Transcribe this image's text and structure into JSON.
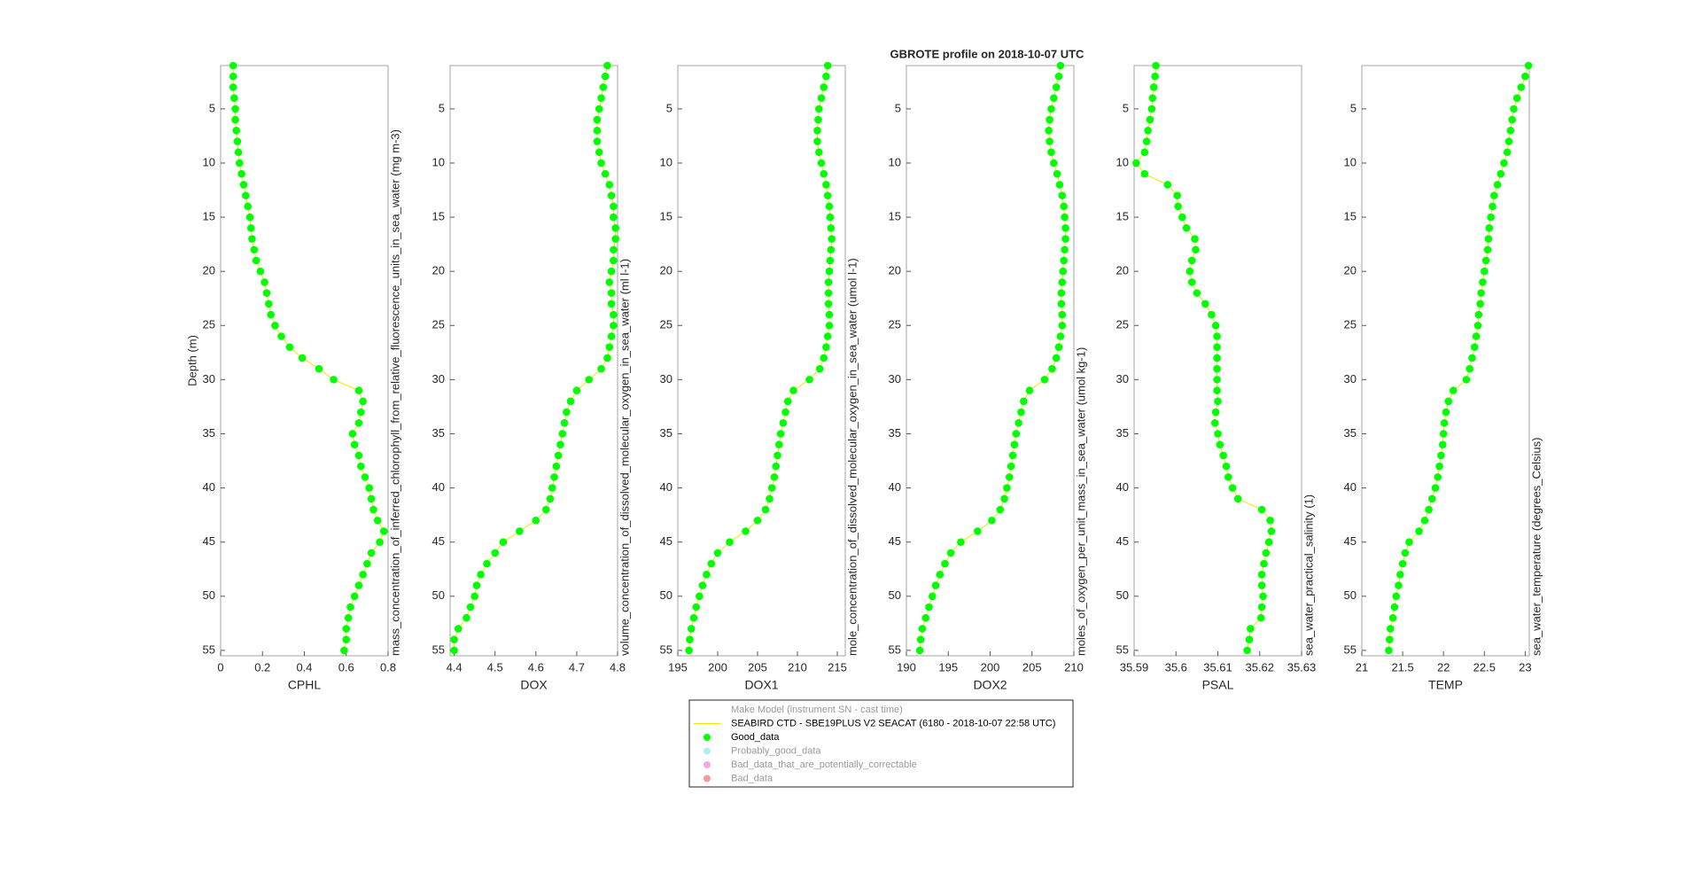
{
  "figure_title": "GBROTE profile on 2018-10-07 UTC",
  "legend": {
    "entries": [
      {
        "label": "Make Model (instrument SN - cast time)",
        "marker": "none",
        "active": false
      },
      {
        "label": "SEABIRD CTD - SBE19PLUS V2 SEACAT (6180 - 2018-10-07 22:58 UTC)",
        "marker": "line",
        "color": "#f2e600",
        "active": true
      },
      {
        "label": "Good_data",
        "marker": "point",
        "color": "#00ff00",
        "active": true
      },
      {
        "label": "Probably_good_data",
        "marker": "point",
        "color": "#aaf0f5",
        "active": false
      },
      {
        "label": "Bad_data_that_are_potentially_correctable",
        "marker": "point",
        "color": "#f0a8e8",
        "active": false
      },
      {
        "label": "Bad_data",
        "marker": "point",
        "color": "#f29a9a",
        "active": false
      }
    ]
  },
  "chart_data": [
    {
      "type": "scatter",
      "xlabel": "CPHL",
      "ylabel": "Depth (m)",
      "annotation": "mass_concentration_of_inferred_chlorophyll_from_relative_fluorescence_units_in_sea_water (mg m-3)",
      "xlim": [
        0,
        0.8
      ],
      "xticks": [
        0,
        0.2,
        0.4,
        0.6,
        0.8
      ],
      "ylim": [
        1,
        55.5
      ],
      "yticks": [
        5,
        10,
        15,
        20,
        25,
        30,
        35,
        40,
        45,
        50,
        55
      ],
      "y_reversed": true,
      "y": [
        1,
        2,
        3,
        4,
        5,
        6,
        7,
        8,
        9,
        10,
        11,
        12,
        13,
        14,
        15,
        16,
        17,
        18,
        19,
        20,
        21,
        22,
        23,
        24,
        25,
        26,
        27,
        28,
        29,
        30,
        31,
        32,
        33,
        34,
        35,
        36,
        37,
        38,
        39,
        40,
        41,
        42,
        43,
        44,
        45,
        46,
        47,
        48,
        49,
        50,
        51,
        52,
        53,
        54,
        55
      ],
      "series": [
        {
          "color": "#00ff00",
          "line_color": "#f2e600",
          "values": [
            0.06,
            0.06,
            0.06,
            0.065,
            0.07,
            0.07,
            0.075,
            0.08,
            0.085,
            0.09,
            0.1,
            0.11,
            0.12,
            0.13,
            0.14,
            0.145,
            0.15,
            0.16,
            0.17,
            0.19,
            0.21,
            0.22,
            0.23,
            0.24,
            0.26,
            0.29,
            0.33,
            0.39,
            0.47,
            0.54,
            0.66,
            0.68,
            0.67,
            0.66,
            0.63,
            0.64,
            0.66,
            0.67,
            0.69,
            0.71,
            0.72,
            0.73,
            0.75,
            0.78,
            0.76,
            0.72,
            0.7,
            0.68,
            0.66,
            0.64,
            0.62,
            0.61,
            0.6,
            0.6,
            0.59
          ]
        }
      ]
    },
    {
      "type": "scatter",
      "xlabel": "DOX",
      "annotation": "volume_concentration_of_dissolved_molecular_oxygen_in_sea_water (ml l-1)",
      "xlim": [
        4.39,
        4.8
      ],
      "xticks": [
        4.4,
        4.5,
        4.6,
        4.7,
        4.8
      ],
      "ylim": [
        1,
        55.5
      ],
      "yticks": [
        5,
        10,
        15,
        20,
        25,
        30,
        35,
        40,
        45,
        50,
        55
      ],
      "y_reversed": true,
      "y": [
        1,
        2,
        3,
        4,
        5,
        6,
        7,
        8,
        9,
        10,
        11,
        12,
        13,
        14,
        15,
        16,
        17,
        18,
        19,
        20,
        21,
        22,
        23,
        24,
        25,
        26,
        27,
        28,
        29,
        30,
        31,
        32,
        33,
        34,
        35,
        36,
        37,
        38,
        39,
        40,
        41,
        42,
        43,
        44,
        45,
        46,
        47,
        48,
        49,
        50,
        51,
        52,
        53,
        54,
        55
      ],
      "series": [
        {
          "color": "#00ff00",
          "line_color": "#f2e600",
          "values": [
            4.775,
            4.77,
            4.765,
            4.76,
            4.755,
            4.75,
            4.75,
            4.75,
            4.755,
            4.76,
            4.77,
            4.78,
            4.785,
            4.79,
            4.79,
            4.795,
            4.795,
            4.79,
            4.79,
            4.785,
            4.78,
            4.785,
            4.785,
            4.79,
            4.79,
            4.785,
            4.78,
            4.775,
            4.76,
            4.73,
            4.7,
            4.685,
            4.675,
            4.67,
            4.665,
            4.66,
            4.655,
            4.65,
            4.645,
            4.64,
            4.635,
            4.625,
            4.6,
            4.56,
            4.52,
            4.5,
            4.48,
            4.465,
            4.455,
            4.45,
            4.44,
            4.43,
            4.41,
            4.4,
            4.4
          ]
        }
      ]
    },
    {
      "type": "scatter",
      "xlabel": "DOX1",
      "annotation": "mole_concentration_of_dissolved_molecular_oxygen_in_sea_water (umol l-1)",
      "xlim": [
        195,
        216
      ],
      "xticks": [
        195,
        200,
        205,
        210,
        215
      ],
      "ylim": [
        1,
        55.5
      ],
      "yticks": [
        5,
        10,
        15,
        20,
        25,
        30,
        35,
        40,
        45,
        50,
        55
      ],
      "y_reversed": true,
      "y": [
        1,
        2,
        3,
        4,
        5,
        6,
        7,
        8,
        9,
        10,
        11,
        12,
        13,
        14,
        15,
        16,
        17,
        18,
        19,
        20,
        21,
        22,
        23,
        24,
        25,
        26,
        27,
        28,
        29,
        30,
        31,
        32,
        33,
        34,
        35,
        36,
        37,
        38,
        39,
        40,
        41,
        42,
        43,
        44,
        45,
        46,
        47,
        48,
        49,
        50,
        51,
        52,
        53,
        54,
        55
      ],
      "series": [
        {
          "color": "#00ff00",
          "line_color": "#f2e600",
          "values": [
            213.8,
            213.6,
            213.3,
            213,
            212.7,
            212.6,
            212.5,
            212.5,
            212.7,
            213,
            213.3,
            213.6,
            213.8,
            214,
            214.1,
            214.2,
            214.3,
            214.2,
            214.1,
            214,
            213.9,
            213.9,
            213.9,
            214,
            214,
            213.8,
            213.6,
            213.3,
            212.8,
            211.5,
            209.5,
            208.8,
            208.5,
            208.2,
            207.9,
            207.7,
            207.5,
            207.3,
            207.1,
            206.8,
            206.5,
            206,
            205,
            203.5,
            201.5,
            200,
            199.2,
            198.6,
            198.1,
            197.7,
            197.3,
            197,
            196.7,
            196.5,
            196.4
          ]
        }
      ]
    },
    {
      "type": "scatter",
      "xlabel": "DOX2",
      "annotation": "moles_of_oxygen_per_unit_mass_in_sea_water (umol kg-1)",
      "xlim": [
        190,
        210
      ],
      "xticks": [
        190,
        195,
        200,
        205,
        210
      ],
      "ylim": [
        1,
        55.5
      ],
      "yticks": [
        5,
        10,
        15,
        20,
        25,
        30,
        35,
        40,
        45,
        50,
        55
      ],
      "y_reversed": true,
      "y": [
        1,
        2,
        3,
        4,
        5,
        6,
        7,
        8,
        9,
        10,
        11,
        12,
        13,
        14,
        15,
        16,
        17,
        18,
        19,
        20,
        21,
        22,
        23,
        24,
        25,
        26,
        27,
        28,
        29,
        30,
        31,
        32,
        33,
        34,
        35,
        36,
        37,
        38,
        39,
        40,
        41,
        42,
        43,
        44,
        45,
        46,
        47,
        48,
        49,
        50,
        51,
        52,
        53,
        54,
        55
      ],
      "series": [
        {
          "color": "#00ff00",
          "line_color": "#f2e600",
          "values": [
            208.4,
            208.2,
            207.9,
            207.6,
            207.3,
            207.1,
            207,
            207.1,
            207.3,
            207.6,
            208,
            208.3,
            208.6,
            208.8,
            208.9,
            209,
            209,
            208.9,
            208.8,
            208.7,
            208.6,
            208.5,
            208.5,
            208.6,
            208.6,
            208.4,
            208.2,
            207.9,
            207.4,
            206.5,
            204.7,
            204,
            203.7,
            203.4,
            203.1,
            202.9,
            202.7,
            202.5,
            202.3,
            202,
            201.7,
            201.2,
            200.2,
            198.5,
            196.5,
            195.3,
            194.6,
            194,
            193.5,
            193.1,
            192.7,
            192.3,
            191.9,
            191.7,
            191.6
          ]
        }
      ]
    },
    {
      "type": "scatter",
      "xlabel": "PSAL",
      "annotation": "sea_water_practical_salinity (1)",
      "xlim": [
        35.59,
        35.63
      ],
      "xticks": [
        35.59,
        35.6,
        35.61,
        35.62,
        35.63
      ],
      "ylim": [
        1,
        55.5
      ],
      "yticks": [
        5,
        10,
        15,
        20,
        25,
        30,
        35,
        40,
        45,
        50,
        55
      ],
      "y_reversed": true,
      "y": [
        1,
        2,
        3,
        4,
        5,
        6,
        7,
        8,
        9,
        10,
        11,
        12,
        13,
        14,
        15,
        16,
        17,
        18,
        19,
        20,
        21,
        22,
        23,
        24,
        25,
        26,
        27,
        28,
        29,
        30,
        31,
        32,
        33,
        34,
        35,
        36,
        37,
        38,
        39,
        40,
        41,
        42,
        43,
        44,
        45,
        46,
        47,
        48,
        49,
        50,
        51,
        52,
        53,
        54,
        55
      ],
      "series": [
        {
          "color": "#00ff00",
          "line_color": "#f2e600",
          "values": [
            35.5952,
            35.595,
            35.5947,
            35.5944,
            35.5942,
            35.5938,
            35.5933,
            35.593,
            35.5925,
            35.5905,
            35.5925,
            35.598,
            35.6003,
            35.6005,
            35.6015,
            35.6025,
            35.6045,
            35.6047,
            35.6038,
            35.6033,
            35.6038,
            35.605,
            35.607,
            35.6085,
            35.6095,
            35.6098,
            35.6098,
            35.6098,
            35.6098,
            35.6098,
            35.6098,
            35.61,
            35.6095,
            35.6093,
            35.61,
            35.6105,
            35.6113,
            35.612,
            35.6125,
            35.6135,
            35.6148,
            35.6205,
            35.6225,
            35.6228,
            35.6222,
            35.6215,
            35.621,
            35.6205,
            35.6205,
            35.6208,
            35.6205,
            35.6203,
            35.6178,
            35.6175,
            35.617
          ]
        }
      ]
    },
    {
      "type": "scatter",
      "xlabel": "TEMP",
      "annotation": "sea_water_temperature (degrees_Celsius)",
      "xlim": [
        21,
        23.05
      ],
      "xticks": [
        21,
        21.5,
        22,
        22.5,
        23
      ],
      "ylim": [
        1,
        55.5
      ],
      "yticks": [
        5,
        10,
        15,
        20,
        25,
        30,
        35,
        40,
        45,
        50,
        55
      ],
      "y_reversed": true,
      "y": [
        1,
        2,
        3,
        4,
        5,
        6,
        7,
        8,
        9,
        10,
        11,
        12,
        13,
        14,
        15,
        16,
        17,
        18,
        19,
        20,
        21,
        22,
        23,
        24,
        25,
        26,
        27,
        28,
        29,
        30,
        31,
        32,
        33,
        34,
        35,
        36,
        37,
        38,
        39,
        40,
        41,
        42,
        43,
        44,
        45,
        46,
        47,
        48,
        49,
        50,
        51,
        52,
        53,
        54,
        55
      ],
      "series": [
        {
          "color": "#00ff00",
          "line_color": "#f2e600",
          "values": [
            23.04,
            23,
            22.95,
            22.9,
            22.86,
            22.84,
            22.82,
            22.8,
            22.78,
            22.74,
            22.7,
            22.66,
            22.62,
            22.6,
            22.58,
            22.56,
            22.55,
            22.54,
            22.52,
            22.5,
            22.48,
            22.46,
            22.45,
            22.43,
            22.42,
            22.4,
            22.38,
            22.35,
            22.32,
            22.28,
            22.12,
            22.06,
            22.03,
            22.01,
            22,
            21.99,
            21.97,
            21.95,
            21.93,
            21.9,
            21.86,
            21.82,
            21.77,
            21.7,
            21.58,
            21.53,
            21.5,
            21.47,
            21.45,
            21.42,
            21.4,
            21.38,
            21.35,
            21.34,
            21.33
          ]
        }
      ]
    }
  ]
}
